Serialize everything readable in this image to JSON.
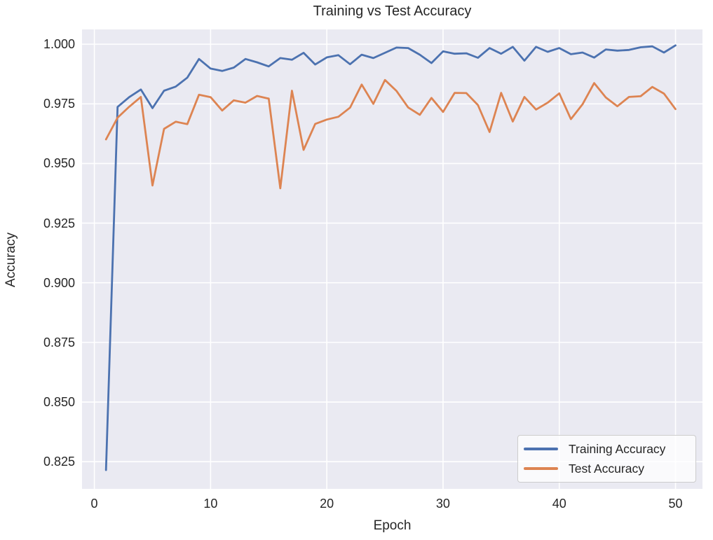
{
  "figure": {
    "title": "Training vs Test Accuracy",
    "xlabel": "Epoch",
    "ylabel": "Accuracy"
  },
  "chart_data": {
    "type": "line",
    "title": "Training vs Test Accuracy",
    "xlabel": "Epoch",
    "ylabel": "Accuracy",
    "grid": true,
    "plot_bg": "#EAEAF2",
    "grid_color": "#FFFFFF",
    "legend_position": "lower right",
    "xlim": [
      -1.06,
      52.32
    ],
    "ylim": [
      0.8136,
      1.0062
    ],
    "xticks": [
      0,
      10,
      20,
      30,
      40,
      50
    ],
    "xtick_labels": [
      "0",
      "10",
      "20",
      "30",
      "40",
      "50"
    ],
    "yticks": [
      1.0,
      0.975,
      0.95,
      0.925,
      0.9,
      0.875,
      0.85,
      0.825
    ],
    "ytick_labels": [
      "1.000",
      "0.975",
      "0.950",
      "0.925",
      "0.900",
      "0.875",
      "0.850",
      "0.825"
    ],
    "x": [
      1,
      2,
      3,
      4,
      5,
      6,
      7,
      8,
      9,
      10,
      11,
      12,
      13,
      14,
      15,
      16,
      17,
      18,
      19,
      20,
      21,
      22,
      23,
      24,
      25,
      26,
      27,
      28,
      29,
      30,
      31,
      32,
      33,
      34,
      35,
      36,
      37,
      38,
      39,
      40,
      41,
      42,
      43,
      44,
      45,
      46,
      47,
      48,
      49,
      50
    ],
    "series": [
      {
        "name": "Training Accuracy",
        "color": "#4C72B0",
        "values": [
          0.8215,
          0.9737,
          0.9778,
          0.981,
          0.9732,
          0.9805,
          0.9822,
          0.986,
          0.9938,
          0.9898,
          0.9888,
          0.9902,
          0.9938,
          0.9924,
          0.9907,
          0.9942,
          0.9935,
          0.9964,
          0.9915,
          0.9945,
          0.9954,
          0.9916,
          0.9956,
          0.9942,
          0.9964,
          0.9986,
          0.9984,
          0.9956,
          0.9921,
          0.997,
          0.996,
          0.9962,
          0.9943,
          0.9984,
          0.996,
          0.9989,
          0.9931,
          0.9989,
          0.9968,
          0.9984,
          0.9958,
          0.9965,
          0.9944,
          0.9978,
          0.9973,
          0.9976,
          0.9987,
          0.9991,
          0.9965,
          0.9995
        ]
      },
      {
        "name": "Test Accuracy",
        "color": "#DD8452",
        "values": [
          0.9601,
          0.9692,
          0.9738,
          0.9779,
          0.9408,
          0.9645,
          0.9675,
          0.9665,
          0.9788,
          0.9778,
          0.9722,
          0.9765,
          0.9755,
          0.9783,
          0.9772,
          0.9396,
          0.9805,
          0.9557,
          0.9666,
          0.9684,
          0.9696,
          0.9734,
          0.9831,
          0.975,
          0.985,
          0.9804,
          0.9735,
          0.9704,
          0.9775,
          0.9716,
          0.9796,
          0.9795,
          0.9745,
          0.9632,
          0.9796,
          0.9676,
          0.9779,
          0.9726,
          0.9755,
          0.9794,
          0.9686,
          0.9748,
          0.9837,
          0.9777,
          0.974,
          0.9779,
          0.9782,
          0.9821,
          0.9793,
          0.9728
        ]
      }
    ]
  }
}
